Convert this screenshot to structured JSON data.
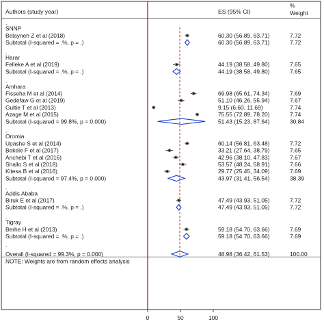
{
  "header": {
    "authors_col": "Authors (study year)",
    "es_col": "ES (95% CI)",
    "weight_col_line1": "%",
    "weight_col_line2": "Weight"
  },
  "note": "NOTE: Weights are from random effects analysis",
  "colors": {
    "frame": "#333333",
    "null_line": "#cc0000",
    "overall_line": "#aa1111",
    "diamond": "#1a3ccc",
    "point": "#111111"
  },
  "chart_data": {
    "type": "forest",
    "x_ticks": [
      0,
      50,
      100
    ],
    "xlim": [
      0,
      100
    ],
    "null_line_x": 0,
    "overall_line_x": 48.98,
    "subgroups": [
      {
        "label": "SNNP",
        "studies": [
          {
            "label": "Belayneh Z et al (2018)",
            "es": 60.3,
            "lo": 56.89,
            "hi": 63.71,
            "es_text": "60.30 (56.89, 63.71)",
            "weight": "7.72"
          }
        ],
        "subtotal": {
          "label": "Subtotal  (I-squared = .%, p = .)",
          "es": 60.3,
          "lo": 56.89,
          "hi": 63.71,
          "es_text": "60.30 (56.89, 63.71)",
          "weight": "7.72"
        }
      },
      {
        "label": "Harar",
        "studies": [
          {
            "label": "Felleke A et al (2019)",
            "es": 44.19,
            "lo": 38.58,
            "hi": 49.8,
            "es_text": "44.19 (38.58, 49.80)",
            "weight": "7.65"
          }
        ],
        "subtotal": {
          "label": "Subtotal  (I-squared = .%, p = .)",
          "es": 44.19,
          "lo": 38.58,
          "hi": 49.8,
          "es_text": "44.19 (38.58, 49.80)",
          "weight": "7.65"
        }
      },
      {
        "label": "Amhara",
        "studies": [
          {
            "label": "Fisseha M et al (2014)",
            "es": 69.98,
            "lo": 65.61,
            "hi": 74.34,
            "es_text": "69.98 (65.61, 74.34)",
            "weight": "7.69"
          },
          {
            "label": "Gedefaw G et al (2019)",
            "es": 51.1,
            "lo": 46.26,
            "hi": 55.94,
            "es_text": "51.10 (46.26, 55.94)",
            "weight": "7.67"
          },
          {
            "label": "Gultie T et al (2013)",
            "es": 9.15,
            "lo": 6.6,
            "hi": 11.69,
            "es_text": "9.15 (6.60, 11.69)",
            "weight": "7.74"
          },
          {
            "label": "Azage M et al (2015)",
            "es": 75.55,
            "lo": 72.89,
            "hi": 78.2,
            "es_text": "75.55 (72.89, 78.20)",
            "weight": "7.74"
          }
        ],
        "subtotal": {
          "label": "Subtotal  (I-squared = 99.8%, p = 0.000)",
          "es": 51.43,
          "lo": 15.23,
          "hi": 87.64,
          "es_text": "51.43 (15.23, 87.64)",
          "weight": "30.84"
        }
      },
      {
        "label": "Oromia",
        "studies": [
          {
            "label": "Upashe S et al (2014)",
            "es": 60.14,
            "lo": 56.81,
            "hi": 63.48,
            "es_text": "60.14 (56.81, 63.48)",
            "weight": "7.72"
          },
          {
            "label": "Bekele F et al (2017)",
            "es": 33.21,
            "lo": 27.64,
            "hi": 38.79,
            "es_text": "33.21 (27.64, 38.79)",
            "weight": "7.65"
          },
          {
            "label": "Anchebi T et al (2016)",
            "es": 42.96,
            "lo": 38.1,
            "hi": 47.83,
            "es_text": "42.96 (38.10, 47.83)",
            "weight": "7.67"
          },
          {
            "label": "Shallo S et al (2018)",
            "es": 53.57,
            "lo": 48.24,
            "hi": 58.91,
            "es_text": "53.57 (48.24, 58.91)",
            "weight": "7.66"
          },
          {
            "label": "Kitesa B et al (2016)",
            "es": 29.77,
            "lo": 25.45,
            "hi": 34.09,
            "es_text": "29.77 (25.45, 34.09)",
            "weight": "7.69"
          }
        ],
        "subtotal": {
          "label": "Subtotal  (I-squared = 97.4%, p = 0.000)",
          "es": 43.97,
          "lo": 31.41,
          "hi": 56.54,
          "es_text": "43.97 (31.41, 56.54)",
          "weight": "38.39"
        }
      },
      {
        "label": "Addis Ababa",
        "studies": [
          {
            "label": "Biruk E et al (2017)",
            "es": 47.49,
            "lo": 43.93,
            "hi": 51.05,
            "es_text": "47.49 (43.93, 51.05)",
            "weight": "7.72"
          }
        ],
        "subtotal": {
          "label": "Subtotal  (I-squared = .%, p = .)",
          "es": 47.49,
          "lo": 43.93,
          "hi": 51.05,
          "es_text": "47.49 (43.93, 51.05)",
          "weight": "7.72"
        }
      },
      {
        "label": "Tigray",
        "studies": [
          {
            "label": "Berhe H et al (2013)",
            "es": 59.18,
            "lo": 54.7,
            "hi": 63.66,
            "es_text": "59.18 (54.70, 63.66)",
            "weight": "7.69"
          }
        ],
        "subtotal": {
          "label": "Subtotal  (I-squared = .%, p = .)",
          "es": 59.18,
          "lo": 54.7,
          "hi": 63.66,
          "es_text": "59.18 (54.70, 63.66)",
          "weight": "7.69"
        }
      }
    ],
    "overall": {
      "label": "Overall  (I-squared = 99.3%, p = 0.000)",
      "es": 48.98,
      "lo": 36.42,
      "hi": 61.53,
      "es_text": "48.98 (36.42, 61.53)",
      "weight": "100.00"
    }
  }
}
